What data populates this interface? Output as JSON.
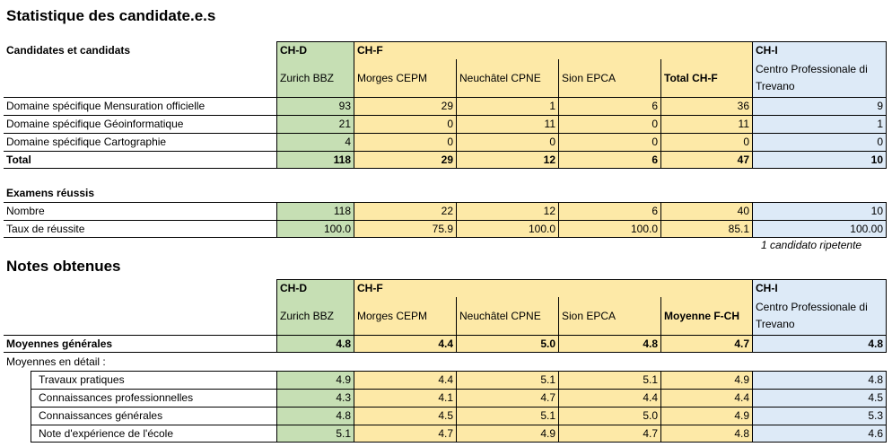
{
  "title1": "Statistique des candidate.e.s",
  "title2": "Notes obtenues",
  "note_repeat": "1 candidato ripetente",
  "candidates": {
    "label": "Candidates et candidats",
    "groups": [
      "CH-D",
      "CH-F",
      "CH-I"
    ],
    "columns": [
      "Zurich BBZ",
      "Morges CEPM",
      "Neuchâtel CPNE",
      "Sion EPCA",
      "Total CH-F",
      "Centro Professionale di Trevano"
    ],
    "rows": [
      {
        "label": "Domaine spécifique Mensuration officielle",
        "values": [
          "93",
          "29",
          "1",
          "6",
          "36",
          "9"
        ]
      },
      {
        "label": "Domaine spécifique Géoinformatique",
        "values": [
          "21",
          "0",
          "11",
          "0",
          "11",
          "1"
        ]
      },
      {
        "label": "Domaine spécifique Cartographie",
        "values": [
          "4",
          "0",
          "0",
          "0",
          "0",
          "0"
        ]
      }
    ],
    "total": {
      "label": "Total",
      "values": [
        "118",
        "29",
        "12",
        "6",
        "47",
        "10"
      ]
    }
  },
  "exams": {
    "label": "Examens réussis",
    "rows": [
      {
        "label": "Nombre",
        "values": [
          "118",
          "22",
          "12",
          "6",
          "40",
          "10"
        ]
      },
      {
        "label": "Taux de réussite",
        "values": [
          "100.0",
          "75.9",
          "100.0",
          "100.0",
          "85.1",
          "100.00"
        ]
      }
    ]
  },
  "notes": {
    "groups": [
      "CH-D",
      "CH-F",
      "CH-I"
    ],
    "columns": [
      "Zurich BBZ",
      "Morges CEPM",
      "Neuchâtel CPNE",
      "Sion EPCA",
      "Moyenne F-CH",
      "Centro Professionale di Trevano"
    ],
    "general": {
      "label": "Moyennes générales",
      "values": [
        "4.8",
        "4.4",
        "5.0",
        "4.8",
        "4.7",
        "4.8"
      ]
    },
    "detail_label": "Moyennes en détail :",
    "detail_rows": [
      {
        "label": "Travaux pratiques",
        "values": [
          "4.9",
          "4.4",
          "5.1",
          "5.1",
          "4.9",
          "4.8"
        ]
      },
      {
        "label": "Connaissances professionnelles",
        "values": [
          "4.3",
          "4.1",
          "4.7",
          "4.4",
          "4.4",
          "4.5"
        ]
      },
      {
        "label": "Connaissances générales",
        "values": [
          "4.8",
          "4.5",
          "5.1",
          "5.0",
          "4.9",
          "5.3"
        ]
      },
      {
        "label": "Note d'expérience de l'école",
        "values": [
          "5.1",
          "4.7",
          "4.9",
          "4.7",
          "4.8",
          "4.6"
        ]
      }
    ]
  }
}
